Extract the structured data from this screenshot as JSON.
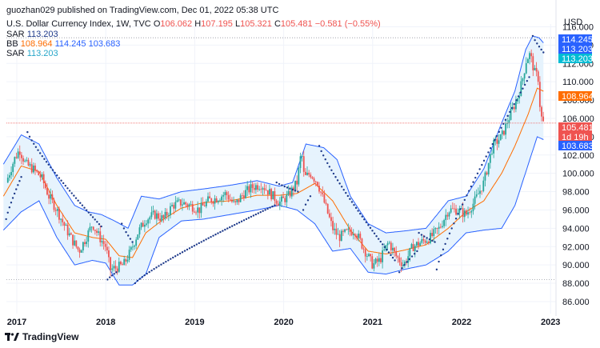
{
  "header": {
    "published": "guozhan029 published on TradingView.com, Dec 01, 2022 05:38 UTC",
    "symbol": "U.S. Dollar Currency Index, 1W, TVC",
    "o_label": "O",
    "o_value": "106.062",
    "h_label": "H",
    "h_value": "107.195",
    "l_label": "L",
    "l_value": "105.321",
    "c_label": "C",
    "c_value": "105.481",
    "change": "−0.581 (−0.55%)",
    "sar1_label": "SAR",
    "sar1_value": "113.203",
    "bb_label": "BB",
    "bb_basis": "108.964",
    "bb_upper": "114.245",
    "bb_lower": "103.683",
    "sar2_label": "SAR",
    "sar2_value": "113.203"
  },
  "footer": {
    "brand": "TradingView"
  },
  "colors": {
    "up": "#26a69a",
    "down": "#ef5350",
    "bb_band": "#2962ff",
    "bb_fill": "#e3f2fd",
    "basis": "#ff6d00",
    "sar": "#1e3a8a",
    "last_price": "#ef5350"
  },
  "chart_data": {
    "type": "candlestick",
    "currency": "USD",
    "timeframe": "1W",
    "y_range": [
      85,
      117
    ],
    "y_ticks": [
      "116.000",
      "114.000",
      "112.000",
      "110.000",
      "108.000",
      "106.000",
      "104.000",
      "102.000",
      "100.000",
      "98.000",
      "96.000",
      "94.000",
      "92.000",
      "90.000",
      "88.000",
      "86.000"
    ],
    "x_ticks": [
      "2017",
      "2018",
      "2019",
      "2020",
      "2021",
      "2022",
      "2023"
    ],
    "price_badges": [
      {
        "label": "114.245",
        "value": 114.245,
        "color": "#2962ff"
      },
      {
        "label": "113.203",
        "value": 113.203,
        "color": "#2962ff"
      },
      {
        "label": "113.203",
        "value": 112.2,
        "color": "#00bcd4"
      },
      {
        "label": "108.964",
        "value": 108.964,
        "color": "#ff6d00"
      },
      {
        "label": "105.481",
        "value": 105.481,
        "color": "#ef5350"
      },
      {
        "label": "1d 19h",
        "value": 104.5,
        "color": "#ef5350"
      },
      {
        "label": "103.683",
        "value": 103.683,
        "color": "#2962ff"
      }
    ],
    "horizontal_lines": [
      114.8,
      88.4
    ],
    "close_path": [
      {
        "t": 2016.88,
        "v": 99.0
      },
      {
        "t": 2016.97,
        "v": 101.5
      },
      {
        "t": 2017.03,
        "v": 102.6
      },
      {
        "t": 2017.1,
        "v": 101.0
      },
      {
        "t": 2017.18,
        "v": 100.5
      },
      {
        "t": 2017.28,
        "v": 99.5
      },
      {
        "t": 2017.36,
        "v": 97.5
      },
      {
        "t": 2017.45,
        "v": 96.0
      },
      {
        "t": 2017.55,
        "v": 94.0
      },
      {
        "t": 2017.63,
        "v": 92.6
      },
      {
        "t": 2017.7,
        "v": 91.5
      },
      {
        "t": 2017.78,
        "v": 93.0
      },
      {
        "t": 2017.85,
        "v": 94.5
      },
      {
        "t": 2017.93,
        "v": 93.0
      },
      {
        "t": 2018.0,
        "v": 92.0
      },
      {
        "t": 2018.05,
        "v": 89.5
      },
      {
        "t": 2018.12,
        "v": 89.7
      },
      {
        "t": 2018.2,
        "v": 90.0
      },
      {
        "t": 2018.28,
        "v": 91.5
      },
      {
        "t": 2018.36,
        "v": 93.5
      },
      {
        "t": 2018.45,
        "v": 95.0
      },
      {
        "t": 2018.55,
        "v": 95.5
      },
      {
        "t": 2018.65,
        "v": 95.0
      },
      {
        "t": 2018.75,
        "v": 96.5
      },
      {
        "t": 2018.85,
        "v": 96.8
      },
      {
        "t": 2018.95,
        "v": 96.5
      },
      {
        "t": 2019.05,
        "v": 96.0
      },
      {
        "t": 2019.15,
        "v": 97.0
      },
      {
        "t": 2019.25,
        "v": 97.3
      },
      {
        "t": 2019.35,
        "v": 97.8
      },
      {
        "t": 2019.45,
        "v": 96.5
      },
      {
        "t": 2019.55,
        "v": 97.8
      },
      {
        "t": 2019.65,
        "v": 98.5
      },
      {
        "t": 2019.75,
        "v": 98.8
      },
      {
        "t": 2019.85,
        "v": 97.8
      },
      {
        "t": 2019.95,
        "v": 96.8
      },
      {
        "t": 2020.05,
        "v": 97.5
      },
      {
        "t": 2020.15,
        "v": 99.0
      },
      {
        "t": 2020.2,
        "v": 102.5
      },
      {
        "t": 2020.23,
        "v": 99.5
      },
      {
        "t": 2020.3,
        "v": 100.0
      },
      {
        "t": 2020.38,
        "v": 99.0
      },
      {
        "t": 2020.45,
        "v": 97.0
      },
      {
        "t": 2020.55,
        "v": 94.0
      },
      {
        "t": 2020.62,
        "v": 93.0
      },
      {
        "t": 2020.7,
        "v": 93.5
      },
      {
        "t": 2020.8,
        "v": 93.8
      },
      {
        "t": 2020.9,
        "v": 91.8
      },
      {
        "t": 2021.0,
        "v": 90.0
      },
      {
        "t": 2021.08,
        "v": 90.5
      },
      {
        "t": 2021.18,
        "v": 92.5
      },
      {
        "t": 2021.26,
        "v": 91.0
      },
      {
        "t": 2021.35,
        "v": 90.0
      },
      {
        "t": 2021.45,
        "v": 92.0
      },
      {
        "t": 2021.55,
        "v": 92.5
      },
      {
        "t": 2021.65,
        "v": 93.0
      },
      {
        "t": 2021.75,
        "v": 94.0
      },
      {
        "t": 2021.85,
        "v": 96.0
      },
      {
        "t": 2021.95,
        "v": 96.0
      },
      {
        "t": 2022.05,
        "v": 95.5
      },
      {
        "t": 2022.15,
        "v": 97.0
      },
      {
        "t": 2022.25,
        "v": 99.0
      },
      {
        "t": 2022.35,
        "v": 103.0
      },
      {
        "t": 2022.45,
        "v": 104.0
      },
      {
        "t": 2022.55,
        "v": 106.5
      },
      {
        "t": 2022.62,
        "v": 108.0
      },
      {
        "t": 2022.68,
        "v": 110.0
      },
      {
        "t": 2022.73,
        "v": 112.5
      },
      {
        "t": 2022.77,
        "v": 113.0
      },
      {
        "t": 2022.82,
        "v": 111.0
      },
      {
        "t": 2022.86,
        "v": 110.5
      },
      {
        "t": 2022.88,
        "v": 107.5
      },
      {
        "t": 2022.9,
        "v": 106.0
      },
      {
        "t": 2022.92,
        "v": 105.48
      }
    ],
    "upper_band": [
      {
        "t": 2016.85,
        "v": 101.0
      },
      {
        "t": 2017.05,
        "v": 104.2
      },
      {
        "t": 2017.25,
        "v": 103.2
      },
      {
        "t": 2017.45,
        "v": 99.5
      },
      {
        "t": 2017.65,
        "v": 96.5
      },
      {
        "t": 2017.8,
        "v": 95.8
      },
      {
        "t": 2017.95,
        "v": 95.5
      },
      {
        "t": 2018.1,
        "v": 94.8
      },
      {
        "t": 2018.25,
        "v": 94.0
      },
      {
        "t": 2018.4,
        "v": 97.5
      },
      {
        "t": 2018.6,
        "v": 97.2
      },
      {
        "t": 2018.85,
        "v": 98.0
      },
      {
        "t": 2019.1,
        "v": 98.3
      },
      {
        "t": 2019.4,
        "v": 98.7
      },
      {
        "t": 2019.7,
        "v": 99.2
      },
      {
        "t": 2019.95,
        "v": 98.6
      },
      {
        "t": 2020.1,
        "v": 99.0
      },
      {
        "t": 2020.25,
        "v": 103.2
      },
      {
        "t": 2020.45,
        "v": 102.8
      },
      {
        "t": 2020.6,
        "v": 101.5
      },
      {
        "t": 2020.75,
        "v": 97.5
      },
      {
        "t": 2020.95,
        "v": 94.5
      },
      {
        "t": 2021.15,
        "v": 93.5
      },
      {
        "t": 2021.35,
        "v": 93.7
      },
      {
        "t": 2021.6,
        "v": 94.0
      },
      {
        "t": 2021.85,
        "v": 97.0
      },
      {
        "t": 2022.05,
        "v": 97.5
      },
      {
        "t": 2022.25,
        "v": 100.5
      },
      {
        "t": 2022.45,
        "v": 105.5
      },
      {
        "t": 2022.6,
        "v": 109.0
      },
      {
        "t": 2022.72,
        "v": 113.5
      },
      {
        "t": 2022.8,
        "v": 115.0
      },
      {
        "t": 2022.87,
        "v": 114.8
      },
      {
        "t": 2022.92,
        "v": 114.245
      }
    ],
    "lower_band": [
      {
        "t": 2016.85,
        "v": 93.8
      },
      {
        "t": 2017.05,
        "v": 95.8
      },
      {
        "t": 2017.25,
        "v": 97.0
      },
      {
        "t": 2017.45,
        "v": 93.0
      },
      {
        "t": 2017.65,
        "v": 90.0
      },
      {
        "t": 2017.85,
        "v": 90.5
      },
      {
        "t": 2018.0,
        "v": 90.2
      },
      {
        "t": 2018.15,
        "v": 87.8
      },
      {
        "t": 2018.3,
        "v": 87.8
      },
      {
        "t": 2018.45,
        "v": 89.0
      },
      {
        "t": 2018.6,
        "v": 93.0
      },
      {
        "t": 2018.85,
        "v": 94.8
      },
      {
        "t": 2019.1,
        "v": 95.0
      },
      {
        "t": 2019.4,
        "v": 95.5
      },
      {
        "t": 2019.7,
        "v": 96.0
      },
      {
        "t": 2019.95,
        "v": 96.5
      },
      {
        "t": 2020.15,
        "v": 96.0
      },
      {
        "t": 2020.35,
        "v": 94.5
      },
      {
        "t": 2020.55,
        "v": 91.5
      },
      {
        "t": 2020.75,
        "v": 91.8
      },
      {
        "t": 2020.95,
        "v": 89.2
      },
      {
        "t": 2021.15,
        "v": 89.0
      },
      {
        "t": 2021.35,
        "v": 89.5
      },
      {
        "t": 2021.6,
        "v": 90.0
      },
      {
        "t": 2021.85,
        "v": 91.5
      },
      {
        "t": 2022.05,
        "v": 93.5
      },
      {
        "t": 2022.25,
        "v": 93.8
      },
      {
        "t": 2022.45,
        "v": 94.0
      },
      {
        "t": 2022.6,
        "v": 96.5
      },
      {
        "t": 2022.75,
        "v": 101.0
      },
      {
        "t": 2022.85,
        "v": 104.0
      },
      {
        "t": 2022.92,
        "v": 103.683
      }
    ],
    "basis": [
      {
        "t": 2016.85,
        "v": 97.5
      },
      {
        "t": 2017.05,
        "v": 100.8
      },
      {
        "t": 2017.25,
        "v": 100.2
      },
      {
        "t": 2017.45,
        "v": 96.5
      },
      {
        "t": 2017.65,
        "v": 93.5
      },
      {
        "t": 2017.85,
        "v": 93.0
      },
      {
        "t": 2018.0,
        "v": 92.8
      },
      {
        "t": 2018.15,
        "v": 91.0
      },
      {
        "t": 2018.3,
        "v": 90.8
      },
      {
        "t": 2018.45,
        "v": 93.5
      },
      {
        "t": 2018.65,
        "v": 95.0
      },
      {
        "t": 2018.85,
        "v": 96.2
      },
      {
        "t": 2019.1,
        "v": 96.8
      },
      {
        "t": 2019.4,
        "v": 97.0
      },
      {
        "t": 2019.7,
        "v": 97.6
      },
      {
        "t": 2019.95,
        "v": 97.6
      },
      {
        "t": 2020.15,
        "v": 97.8
      },
      {
        "t": 2020.35,
        "v": 98.9
      },
      {
        "t": 2020.55,
        "v": 97.0
      },
      {
        "t": 2020.75,
        "v": 93.8
      },
      {
        "t": 2020.95,
        "v": 91.5
      },
      {
        "t": 2021.15,
        "v": 91.2
      },
      {
        "t": 2021.35,
        "v": 91.6
      },
      {
        "t": 2021.6,
        "v": 92.2
      },
      {
        "t": 2021.85,
        "v": 94.0
      },
      {
        "t": 2022.05,
        "v": 95.8
      },
      {
        "t": 2022.25,
        "v": 97.0
      },
      {
        "t": 2022.45,
        "v": 100.0
      },
      {
        "t": 2022.6,
        "v": 103.0
      },
      {
        "t": 2022.75,
        "v": 106.5
      },
      {
        "t": 2022.85,
        "v": 109.3
      },
      {
        "t": 2022.92,
        "v": 108.964
      }
    ],
    "sar_segments": [
      {
        "start": [
          2016.88,
          95.0
        ],
        "end": [
          2017.05,
          99.6
        ],
        "n": 10
      },
      {
        "start": [
          2017.12,
          104.5
        ],
        "end": [
          2017.95,
          94.2
        ],
        "n": 36
      },
      {
        "start": [
          2018.02,
          88.4
        ],
        "end": [
          2018.12,
          89.2
        ],
        "n": 5
      },
      {
        "start": [
          2018.18,
          94.5
        ],
        "end": [
          2018.3,
          92.5
        ],
        "n": 6
      },
      {
        "start": [
          2018.33,
          88.0
        ],
        "end": [
          2019.9,
          96.5
        ],
        "n": 60
      },
      {
        "start": [
          2019.92,
          99.0
        ],
        "end": [
          2020.16,
          98.0
        ],
        "n": 9
      },
      {
        "start": [
          2020.22,
          96.0
        ],
        "end": [
          2020.3,
          97.5
        ],
        "n": 4
      },
      {
        "start": [
          2020.4,
          103.0
        ],
        "end": [
          2021.25,
          90.5
        ],
        "n": 38
      },
      {
        "start": [
          2021.3,
          89.2
        ],
        "end": [
          2021.5,
          91.5
        ],
        "n": 8
      },
      {
        "start": [
          2021.52,
          93.5
        ],
        "end": [
          2021.7,
          92.5
        ],
        "n": 7
      },
      {
        "start": [
          2021.72,
          89.5
        ],
        "end": [
          2022.76,
          110.5
        ],
        "n": 44
      },
      {
        "start": [
          2022.8,
          115.0
        ],
        "end": [
          2022.92,
          113.2
        ],
        "n": 6
      }
    ]
  }
}
